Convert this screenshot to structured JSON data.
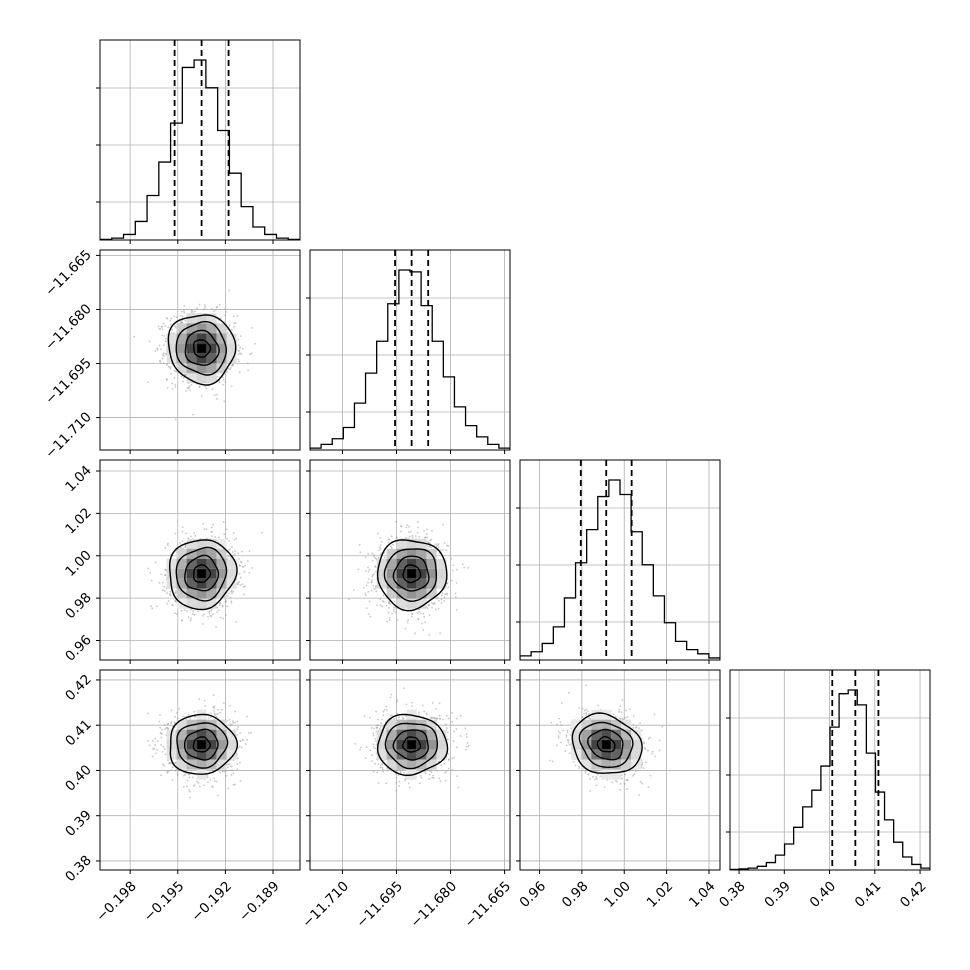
{
  "chart_data": {
    "type": "corner",
    "title": "",
    "parameters": [
      {
        "range": [
          -0.1999,
          -0.1873
        ],
        "ticks": [
          -0.198,
          -0.195,
          -0.192,
          -0.189
        ],
        "tick_labels": [
          "−0.198",
          "−0.195",
          "−0.192",
          "−0.189"
        ],
        "quantiles": [
          -0.1952,
          -0.1935,
          -0.1918
        ],
        "median": -0.1935,
        "sd": 0.00105,
        "hist": [
          0.3,
          1,
          3,
          10,
          24,
          42,
          63,
          93,
          97,
          82,
          59,
          36,
          18,
          7,
          3,
          1,
          0.3
        ]
      },
      {
        "range": [
          -11.719,
          -11.6635
        ],
        "ticks": [
          -11.71,
          -11.695,
          -11.68,
          -11.665
        ],
        "tick_labels": [
          "−11.710",
          "−11.695",
          "−11.680",
          "−11.665"
        ],
        "quantiles": [
          -11.6954,
          -11.6908,
          -11.6862
        ],
        "median": -11.6908,
        "sd": 0.0048,
        "hist": [
          1,
          3,
          6,
          12,
          25,
          41,
          58,
          78,
          96,
          95,
          77,
          58,
          39,
          23,
          13,
          7,
          3,
          1
        ]
      },
      {
        "range": [
          0.9508,
          1.0452
        ],
        "ticks": [
          0.96,
          0.98,
          1.0,
          1.02,
          1.04
        ],
        "tick_labels": [
          "0.96",
          "0.98",
          "1.00",
          "1.02",
          "1.04"
        ],
        "quantiles": [
          0.9795,
          0.9915,
          1.0035
        ],
        "median": 0.9915,
        "sd": 0.0082,
        "hist": [
          2,
          4,
          8,
          16,
          30,
          47,
          63,
          79,
          87,
          80,
          62,
          46,
          31,
          18,
          9,
          5,
          3,
          1
        ]
      },
      {
        "range": [
          0.378,
          0.4222
        ],
        "ticks": [
          0.38,
          0.39,
          0.4,
          0.41,
          0.42
        ],
        "tick_labels": [
          "0.38",
          "0.39",
          "0.40",
          "0.41",
          "0.42"
        ],
        "quantiles": [
          0.4006,
          0.4057,
          0.4108
        ],
        "median": 0.4057,
        "sd": 0.0033,
        "hist": [
          0.3,
          0.6,
          1,
          2,
          4,
          8,
          14,
          23,
          34,
          43,
          56,
          77,
          95,
          97,
          89,
          63,
          42,
          27,
          15,
          7,
          3,
          1
        ]
      }
    ],
    "correlations": {
      "1-0": -0.05,
      "2-0": 0.05,
      "2-1": 0.0,
      "3-0": 0.02,
      "3-1": 0.0,
      "3-2": -0.15
    },
    "quantile_levels": [
      0.16,
      0.5,
      0.84
    ],
    "contour_levels_sigma": [
      0.5,
      1,
      1.5,
      2
    ],
    "grid": true,
    "colors": {
      "line": "#000000",
      "grid": "#b0b0b0",
      "points": "#9a9a9a"
    }
  }
}
